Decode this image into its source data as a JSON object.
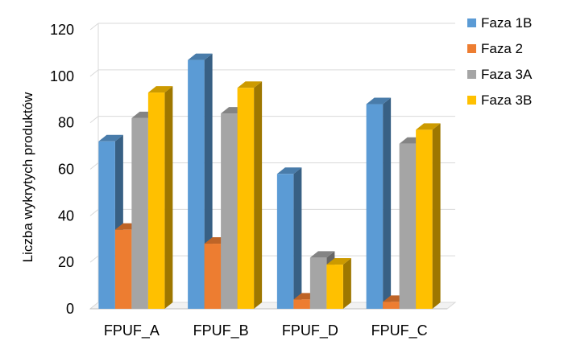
{
  "chart_data": {
    "type": "bar",
    "title": "",
    "xlabel": "",
    "ylabel": "Liczba wykrytych produktów",
    "ylim": [
      0,
      120
    ],
    "yticks": [
      0,
      20,
      40,
      60,
      80,
      100,
      120
    ],
    "grid": true,
    "legend_position": "right",
    "style": "3d-clustered",
    "categories": [
      "FPUF_A",
      "FPUF_B",
      "FPUF_D",
      "FPUF_C"
    ],
    "series": [
      {
        "name": "Faza 1B",
        "color": "#5b9bd5",
        "values": [
          72,
          107,
          58,
          88
        ]
      },
      {
        "name": "Faza 2",
        "color": "#ed7d31",
        "values": [
          34,
          28,
          4,
          3
        ]
      },
      {
        "name": "Faza 3A",
        "color": "#a5a5a5",
        "values": [
          82,
          84,
          22,
          71
        ]
      },
      {
        "name": "Faza 3B",
        "color": "#ffc000",
        "values": [
          93,
          95,
          19,
          77
        ]
      }
    ]
  }
}
